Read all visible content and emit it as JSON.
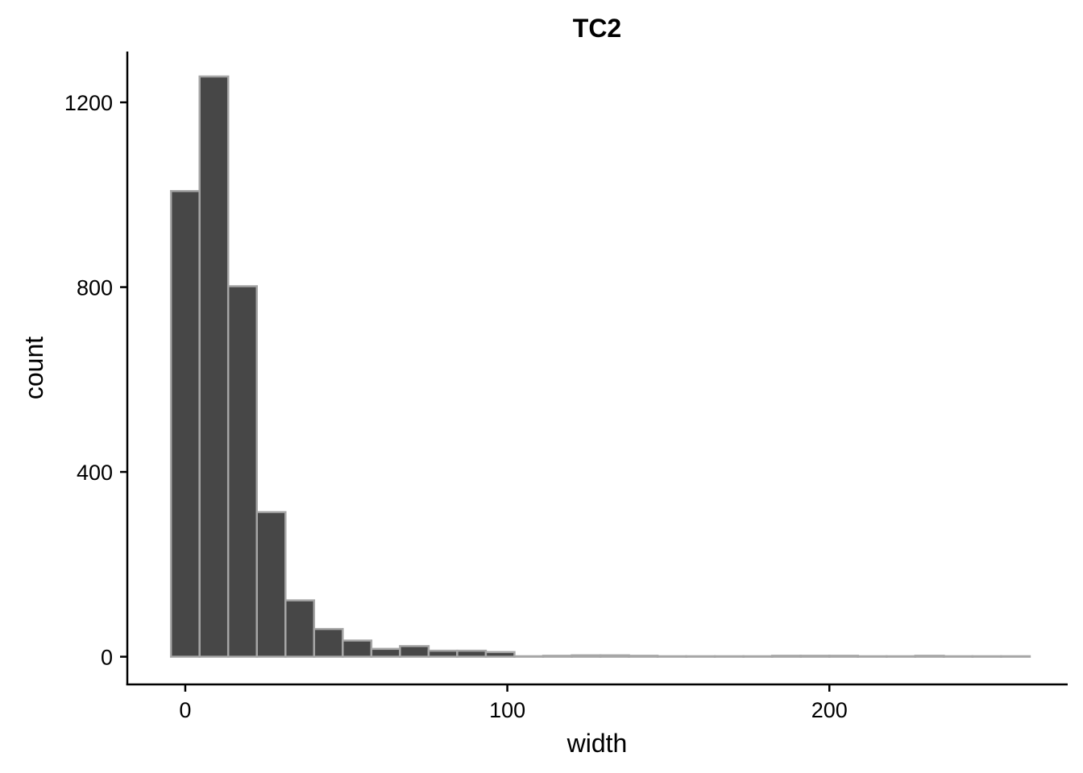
{
  "chart_data": {
    "type": "bar",
    "title": "TC2",
    "xlabel": "width",
    "ylabel": "count",
    "bin_width": 8.89,
    "bins": [
      {
        "x0": -4.44,
        "x1": 4.44,
        "count": 1008
      },
      {
        "x0": 4.44,
        "x1": 13.33,
        "count": 1256
      },
      {
        "x0": 13.33,
        "x1": 22.22,
        "count": 802
      },
      {
        "x0": 22.22,
        "x1": 31.11,
        "count": 313
      },
      {
        "x0": 31.11,
        "x1": 40.0,
        "count": 122
      },
      {
        "x0": 40.0,
        "x1": 48.89,
        "count": 60
      },
      {
        "x0": 48.89,
        "x1": 57.78,
        "count": 35
      },
      {
        "x0": 57.78,
        "x1": 66.67,
        "count": 17
      },
      {
        "x0": 66.67,
        "x1": 75.56,
        "count": 23
      },
      {
        "x0": 75.56,
        "x1": 84.44,
        "count": 13
      },
      {
        "x0": 84.44,
        "x1": 93.33,
        "count": 13
      },
      {
        "x0": 93.33,
        "x1": 102.22,
        "count": 10
      },
      {
        "x0": 102.22,
        "x1": 111.11,
        "count": 1
      },
      {
        "x0": 111.11,
        "x1": 120.0,
        "count": 2
      },
      {
        "x0": 120.0,
        "x1": 128.89,
        "count": 3
      },
      {
        "x0": 128.89,
        "x1": 137.78,
        "count": 3
      },
      {
        "x0": 137.78,
        "x1": 146.67,
        "count": 2
      },
      {
        "x0": 146.67,
        "x1": 155.56,
        "count": 1
      },
      {
        "x0": 155.56,
        "x1": 164.44,
        "count": 1
      },
      {
        "x0": 164.44,
        "x1": 173.33,
        "count": 1
      },
      {
        "x0": 173.33,
        "x1": 182.22,
        "count": 1
      },
      {
        "x0": 182.22,
        "x1": 191.11,
        "count": 2
      },
      {
        "x0": 191.11,
        "x1": 200.0,
        "count": 2
      },
      {
        "x0": 200.0,
        "x1": 208.89,
        "count": 2
      },
      {
        "x0": 208.89,
        "x1": 217.78,
        "count": 1
      },
      {
        "x0": 217.78,
        "x1": 226.67,
        "count": 1
      },
      {
        "x0": 226.67,
        "x1": 235.56,
        "count": 2
      },
      {
        "x0": 235.56,
        "x1": 244.44,
        "count": 1
      },
      {
        "x0": 244.44,
        "x1": 253.33,
        "count": 1
      },
      {
        "x0": 253.33,
        "x1": 262.22,
        "count": 1
      }
    ],
    "xlim": [
      -18,
      274
    ],
    "ylim": [
      -60,
      1310
    ],
    "x_ticks": [
      0,
      100,
      200
    ],
    "y_ticks": [
      0,
      400,
      800,
      1200
    ],
    "grid": false,
    "legend": "none",
    "bar_fill": "#474747",
    "bar_outline": "#a6a6a6",
    "axis_color": "#000000"
  }
}
